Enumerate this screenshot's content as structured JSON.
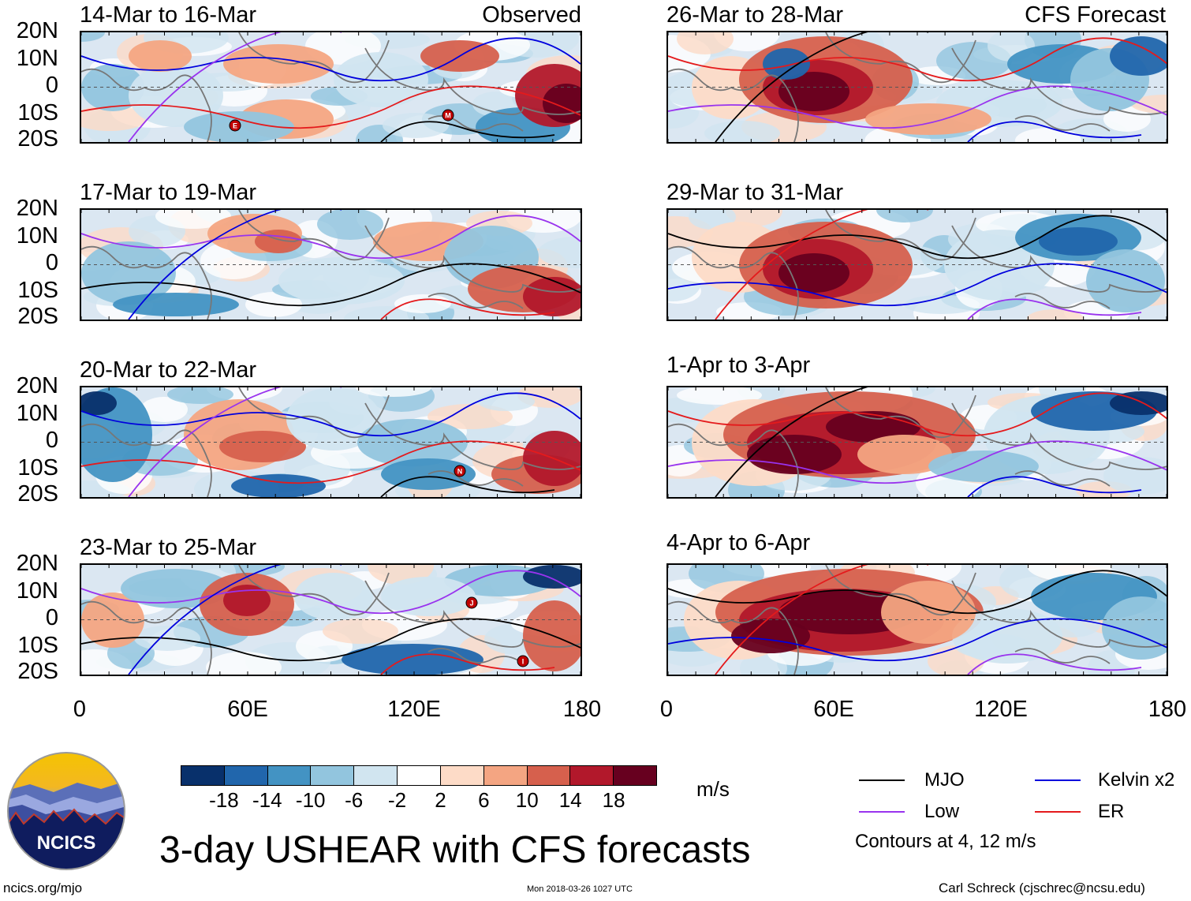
{
  "panels": {
    "observed_label": "Observed",
    "forecast_label": "CFS Forecast",
    "left": [
      {
        "title": "14-Mar to 16-Mar"
      },
      {
        "title": "17-Mar to 19-Mar"
      },
      {
        "title": "20-Mar to 22-Mar"
      },
      {
        "title": "23-Mar to 25-Mar"
      }
    ],
    "right": [
      {
        "title": "26-Mar to 28-Mar"
      },
      {
        "title": "29-Mar to 31-Mar"
      },
      {
        "title": "1-Apr to 3-Apr"
      },
      {
        "title": "4-Apr to 6-Apr"
      }
    ]
  },
  "axes": {
    "lat_labels": [
      "20N",
      "10N",
      "0",
      "10S",
      "20S"
    ],
    "lon_labels": [
      "0",
      "60E",
      "120E",
      "180"
    ]
  },
  "storm_markers": [
    {
      "panel": "left-1",
      "letter": "E"
    },
    {
      "panel": "left-1",
      "letter": "M"
    },
    {
      "panel": "left-3",
      "letter": "N"
    },
    {
      "panel": "left-4",
      "letter": "J"
    },
    {
      "panel": "left-4",
      "letter": "I"
    }
  ],
  "colorbar": {
    "labels": [
      "-18",
      "-14",
      "-10",
      "-6",
      "-2",
      "2",
      "6",
      "10",
      "14",
      "18"
    ],
    "colors": [
      "#08306b",
      "#2166ac",
      "#4393c3",
      "#92c5de",
      "#d1e5f0",
      "#ffffff",
      "#fddbc7",
      "#f4a582",
      "#d6604d",
      "#b2182b",
      "#67001f"
    ],
    "units": "m/s"
  },
  "legend": {
    "mjo": {
      "label": "MJO",
      "color": "#000000"
    },
    "kelvin": {
      "label": "Kelvin x2",
      "color": "#0000dd"
    },
    "low": {
      "label": "Low",
      "color": "#9933ee"
    },
    "er": {
      "label": "ER",
      "color": "#e41a1c"
    },
    "note": "Contours at 4, 12 m/s"
  },
  "logo": {
    "text": "NCICS"
  },
  "main_title": "3-day USHEAR with CFS forecasts",
  "footer": {
    "left": "ncics.org/mjo",
    "center": "Mon 2018-03-26 1027 UTC",
    "right": "Carl Schreck (cjschrec@ncsu.edu)"
  }
}
